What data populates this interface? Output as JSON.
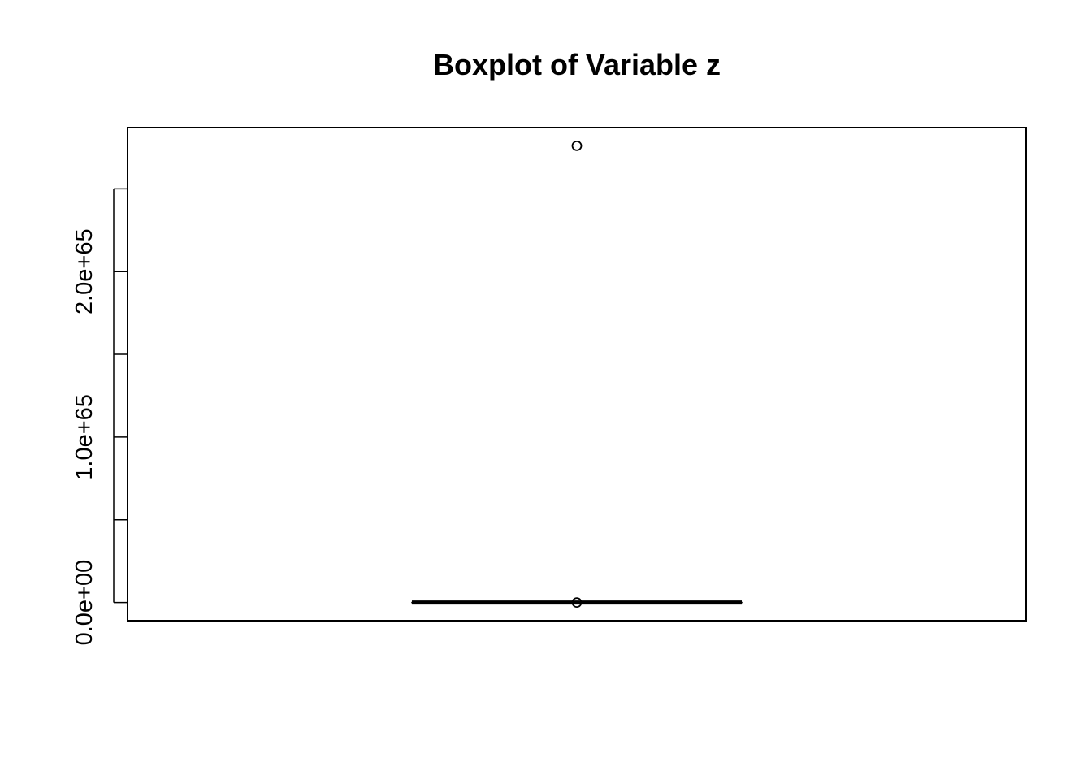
{
  "chart_data": {
    "type": "boxplot",
    "title": "Boxplot of Variable z",
    "xlabel": "",
    "ylabel": "",
    "ylim": [
      -1.1e+64,
      2.87e+65
    ],
    "y_ticks": [
      0,
      5e+64,
      1e+65,
      1.5e+65,
      2e+65,
      2.5e+65
    ],
    "y_tick_labels": [
      "0.0e+00",
      "",
      "1.0e+65",
      "",
      "2.0e+65",
      ""
    ],
    "box": {
      "min": 0,
      "q1": 0,
      "median": 0,
      "q3": 0,
      "max": 0
    },
    "outliers": [
      0,
      2.76e+65
    ],
    "grid": false,
    "legend": "none"
  }
}
